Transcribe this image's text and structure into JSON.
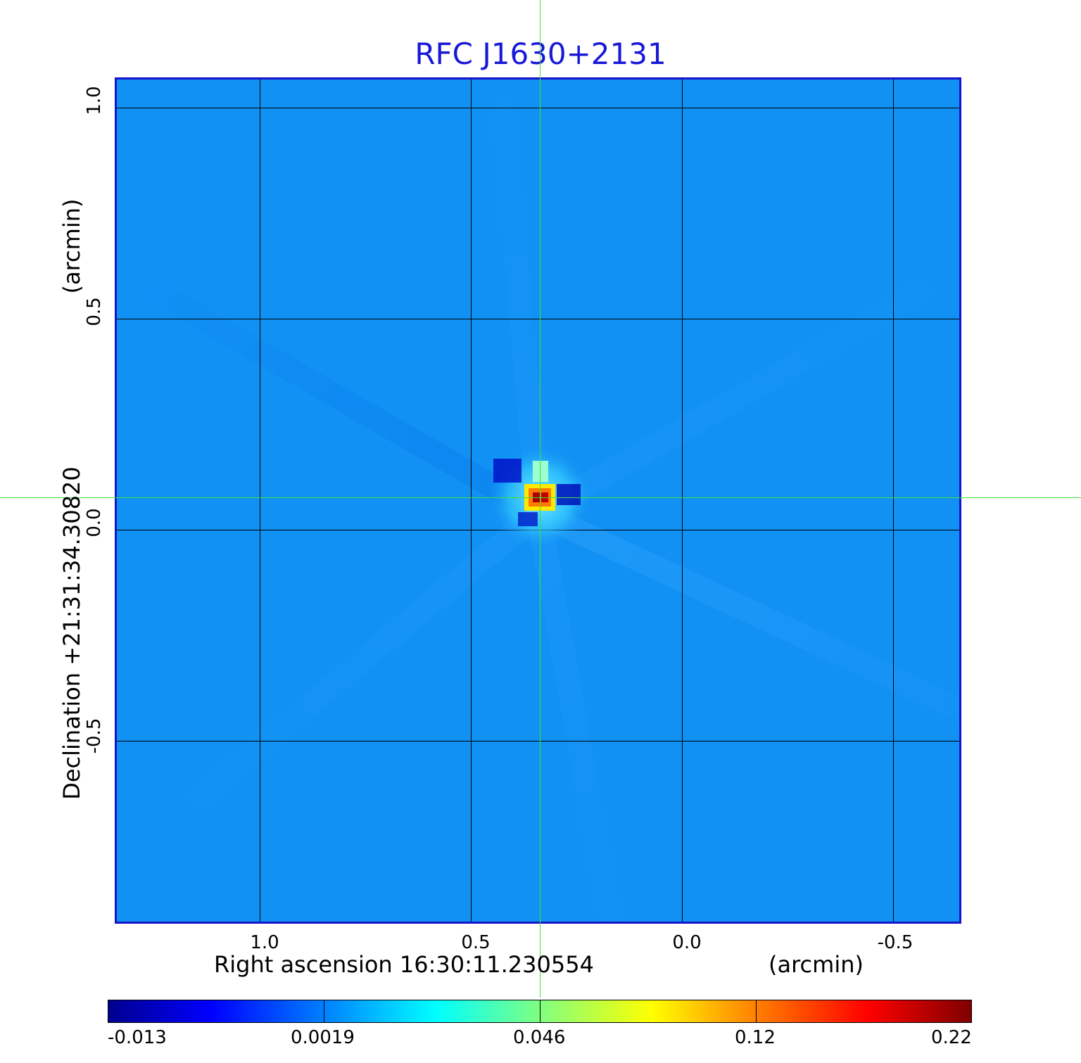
{
  "title": "RFC J1630+2131",
  "x_axis": {
    "label_main": "Right ascension  16:30:11.230554",
    "label_unit": "(arcmin)",
    "ticks": [
      "1.0",
      "0.5",
      "0.0",
      "-0.5"
    ]
  },
  "y_axis": {
    "label_main": "Declination  +21:31:34.30820",
    "label_unit": "(arcmin)",
    "ticks": [
      "1.0",
      "0.5",
      "0.0",
      "-0.5"
    ]
  },
  "colorbar": {
    "ticks": [
      "-0.013",
      "0.0019",
      "0.046",
      "0.12",
      "0.22"
    ],
    "colormap": "jet"
  },
  "colors": {
    "title": "#1818d8",
    "frame": "#1515c8",
    "background_map": "#1191f4",
    "crosshair": "#39e339"
  }
}
